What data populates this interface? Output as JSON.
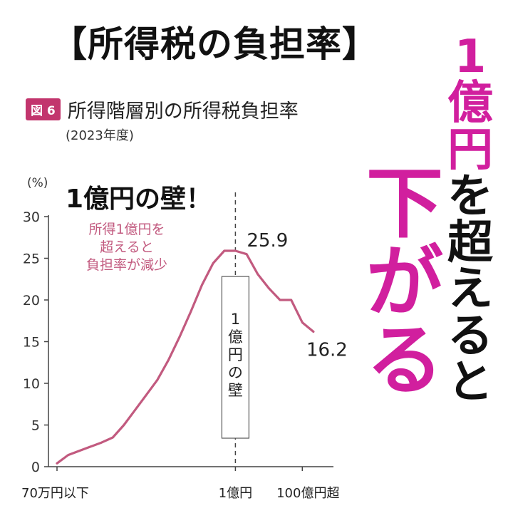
{
  "header": {
    "title": "【所得税の負担率】"
  },
  "figure": {
    "badge": "図 6",
    "title": "所得階層別の所得税負担率",
    "year": "(2023年度)"
  },
  "callout": {
    "wall_title": "1億円の壁！"
  },
  "side_text": {
    "column_right": [
      {
        "text": "1",
        "accent": true
      },
      {
        "text": "億",
        "accent": true
      },
      {
        "text": "円",
        "accent": true
      },
      {
        "text": "を",
        "accent": false
      },
      {
        "text": "超",
        "accent": false
      },
      {
        "text": "え",
        "accent": false
      },
      {
        "text": "る",
        "accent": false
      },
      {
        "text": "と",
        "accent": false
      }
    ],
    "column_left": [
      "下",
      "が",
      "る"
    ]
  },
  "chart_data": {
    "type": "line",
    "ylabel": "(%)",
    "ylim": [
      0,
      30
    ],
    "yticks": [
      0,
      5,
      10,
      15,
      20,
      25,
      30
    ],
    "x_tick_labels": [
      {
        "label": "70万円以下",
        "index": 0
      },
      {
        "label": "1億円",
        "index": 16
      },
      {
        "label": "100億円超",
        "index": 22
      }
    ],
    "series": [
      {
        "values": [
          0.4,
          1.4,
          1.9,
          2.4,
          2.9,
          3.5,
          5.0,
          6.8,
          8.6,
          10.4,
          12.8,
          15.6,
          18.6,
          21.8,
          24.4,
          25.9,
          25.9,
          25.5,
          23.1,
          21.4,
          20.0,
          20.0,
          17.3,
          16.2
        ]
      }
    ],
    "data_labels": [
      {
        "text": "25.9",
        "index": 16,
        "value": 25.9
      },
      {
        "text": "16.2",
        "index": 23,
        "value": 16.2
      }
    ],
    "annotation": [
      "所得1億円を",
      "超えると",
      "負担率が減少"
    ],
    "wall_box_text": [
      "1",
      "億",
      "円",
      "の",
      "壁"
    ],
    "wall_index": 16,
    "colors": {
      "line": "#c25a7f",
      "annotation": "#c25a7f",
      "axis": "#444444"
    }
  }
}
